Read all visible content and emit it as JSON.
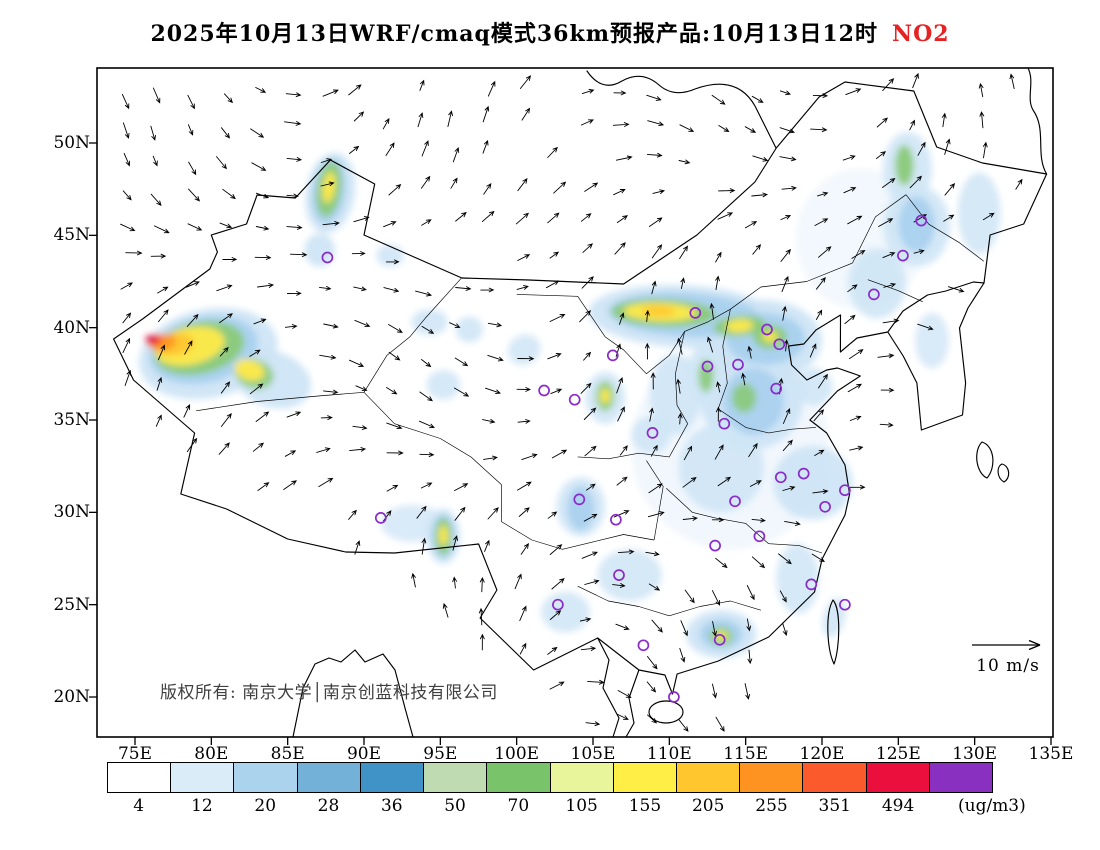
{
  "title": {
    "text": "2025年10月13日WRF/cmaq模式36km预报产品:10月13日12时",
    "pollutant": "NO2",
    "pollutant_color": "#e62222"
  },
  "axes": {
    "lat_labels": [
      "50N",
      "45N",
      "40N",
      "35N",
      "30N",
      "25N",
      "20N"
    ],
    "lon_labels": [
      "75E",
      "80E",
      "85E",
      "90E",
      "95E",
      "100E",
      "105E",
      "110E",
      "115E",
      "120E",
      "125E",
      "130E",
      "135E"
    ]
  },
  "map": {
    "copyright": "版权所有: 南京大学│南京创蓝科技有限公司",
    "wind_legend_label": "10 m/s"
  },
  "colorbar": {
    "unit_label": "(ug/m3)",
    "tick_labels": [
      "4",
      "12",
      "20",
      "28",
      "36",
      "50",
      "70",
      "105",
      "155",
      "205",
      "255",
      "351",
      "494"
    ],
    "colors": [
      "#ffffff",
      "#d9ecf8",
      "#abd3ee",
      "#73b1d9",
      "#3f93c7",
      "#bedbb2",
      "#79c46a",
      "#e9f59a",
      "#ffee45",
      "#ffc62e",
      "#ff9322",
      "#fb5a2d",
      "#ea0f3c",
      "#8a30c0"
    ]
  },
  "chart_data": {
    "type": "heatmap",
    "title": "2025年10月13日WRF/cmaq模式36km预报产品:10月13日12时 NO2",
    "variable": "NO2",
    "unit": "ug/m3",
    "x_axis": {
      "type": "longitude",
      "ticks": [
        "75E",
        "80E",
        "85E",
        "90E",
        "95E",
        "100E",
        "105E",
        "110E",
        "115E",
        "120E",
        "125E",
        "130E",
        "135E"
      ]
    },
    "y_axis": {
      "type": "latitude",
      "ticks": [
        "50N",
        "45N",
        "40N",
        "35N",
        "30N",
        "25N",
        "20N"
      ]
    },
    "lon_range": [
      72.5,
      135.1
    ],
    "lat_range": [
      17.8,
      54.1
    ],
    "contour_levels": [
      4,
      12,
      20,
      28,
      36,
      50,
      70,
      105,
      155,
      205,
      255,
      351,
      494
    ],
    "palette": [
      "#ffffff",
      "#d9ecf8",
      "#abd3ee",
      "#73b1d9",
      "#3f93c7",
      "#bedbb2",
      "#79c46a",
      "#e9f59a",
      "#ffee45",
      "#ffc62e",
      "#ff9322",
      "#fb5a2d",
      "#ea0f3c",
      "#8a30c0"
    ],
    "wind_reference": "10 m/s",
    "station_marker_color": "#8a2bc9",
    "stations_lonlat": [
      [
        87.6,
        43.8
      ],
      [
        91.1,
        29.7
      ],
      [
        101.8,
        36.6
      ],
      [
        103.8,
        36.1
      ],
      [
        106.3,
        38.5
      ],
      [
        111.7,
        40.8
      ],
      [
        108.9,
        34.3
      ],
      [
        112.5,
        37.9
      ],
      [
        114.5,
        38.0
      ],
      [
        116.4,
        39.9
      ],
      [
        117.2,
        39.1
      ],
      [
        117.0,
        36.7
      ],
      [
        113.6,
        34.8
      ],
      [
        114.3,
        30.6
      ],
      [
        117.3,
        31.9
      ],
      [
        118.8,
        32.1
      ],
      [
        121.5,
        31.2
      ],
      [
        120.2,
        30.3
      ],
      [
        115.9,
        28.7
      ],
      [
        113.0,
        28.2
      ],
      [
        104.1,
        30.7
      ],
      [
        106.5,
        29.6
      ],
      [
        106.7,
        26.6
      ],
      [
        102.7,
        25.0
      ],
      [
        108.3,
        22.8
      ],
      [
        113.3,
        23.1
      ],
      [
        110.3,
        20.0
      ],
      [
        119.3,
        26.1
      ],
      [
        121.5,
        25.0
      ],
      [
        123.4,
        41.8
      ],
      [
        125.3,
        43.9
      ],
      [
        126.5,
        45.8
      ]
    ],
    "plumes": [
      {
        "lon": 114,
        "lat": 33.5,
        "rlon": 6.5,
        "rlat": 5.5,
        "rot": 0,
        "color": "#edf5fc",
        "opacity": 0.8
      },
      {
        "lon": 122.5,
        "lat": 44.8,
        "rlon": 4.2,
        "rlat": 3.8,
        "rot": 0,
        "color": "#edf5fc",
        "opacity": 0.7
      },
      {
        "lon": 79.8,
        "lat": 38.6,
        "rlon": 4.6,
        "rlat": 2.4,
        "rot": -12,
        "color": "#cfe5f6",
        "opacity": 0.95
      },
      {
        "lon": 84,
        "lat": 37.2,
        "rlon": 2.6,
        "rlat": 1.5,
        "rot": 18,
        "color": "#cfe5f6",
        "opacity": 0.95
      },
      {
        "lon": 87.8,
        "lat": 47.3,
        "rlon": 1.6,
        "rlat": 2.2,
        "rot": 10,
        "color": "#cfe5f6",
        "opacity": 0.95
      },
      {
        "lon": 87.1,
        "lat": 44.2,
        "rlon": 1.0,
        "rlat": 0.9,
        "rot": 0,
        "color": "#cfe5f6",
        "opacity": 0.95
      },
      {
        "lon": 91.7,
        "lat": 43.9,
        "rlon": 0.9,
        "rlat": 0.6,
        "rot": 0,
        "color": "#cfe5f6",
        "opacity": 0.9
      },
      {
        "lon": 96.9,
        "lat": 39.9,
        "rlon": 0.9,
        "rlat": 0.7,
        "rot": 0,
        "color": "#cfe5f6",
        "opacity": 0.9
      },
      {
        "lon": 94.3,
        "lat": 40.3,
        "rlon": 1.2,
        "rlat": 0.7,
        "rot": 0,
        "color": "#cfe5f6",
        "opacity": 0.9
      },
      {
        "lon": 111,
        "lat": 40.6,
        "rlon": 6.3,
        "rlat": 1.7,
        "rot": 3,
        "color": "#cfe5f6",
        "opacity": 0.95
      },
      {
        "lon": 116.2,
        "lat": 39.3,
        "rlon": 3.8,
        "rlat": 2.2,
        "rot": 0,
        "color": "#cfe5f6",
        "opacity": 0.95
      },
      {
        "lon": 115.4,
        "lat": 36.2,
        "rlon": 3.4,
        "rlat": 2.8,
        "rot": 0,
        "color": "#cfe5f6",
        "opacity": 0.95
      },
      {
        "lon": 119.5,
        "lat": 36.8,
        "rlon": 1.2,
        "rlat": 1.0,
        "rot": 0,
        "color": "#cfe5f6",
        "opacity": 0.9
      },
      {
        "lon": 113.4,
        "lat": 32.4,
        "rlon": 2.8,
        "rlat": 2.4,
        "rot": 0,
        "color": "#cfe5f6",
        "opacity": 0.9
      },
      {
        "lon": 119.4,
        "lat": 31.6,
        "rlon": 2.6,
        "rlat": 2.0,
        "rot": 0,
        "color": "#cfe5f6",
        "opacity": 0.95
      },
      {
        "lon": 105.8,
        "lat": 36.2,
        "rlon": 1.3,
        "rlat": 1.4,
        "rot": 0,
        "color": "#cfe5f6",
        "opacity": 0.9
      },
      {
        "lon": 108.8,
        "lat": 34.2,
        "rlon": 1.3,
        "rlat": 1.0,
        "rot": 0,
        "color": "#cfe5f6",
        "opacity": 0.9
      },
      {
        "lon": 104.2,
        "lat": 30.3,
        "rlon": 1.6,
        "rlat": 1.6,
        "rot": 0,
        "color": "#cfe5f6",
        "opacity": 0.9
      },
      {
        "lon": 95.2,
        "lat": 28.7,
        "rlon": 1.1,
        "rlat": 1.5,
        "rot": 0,
        "color": "#cfe5f6",
        "opacity": 0.9
      },
      {
        "lon": 113.4,
        "lat": 23.4,
        "rlon": 2.3,
        "rlat": 1.3,
        "rot": 0,
        "color": "#cfe5f6",
        "opacity": 0.95
      },
      {
        "lon": 126.2,
        "lat": 45.5,
        "rlon": 2.2,
        "rlat": 2.2,
        "rot": 0,
        "color": "#cfe5f6",
        "opacity": 0.9
      },
      {
        "lon": 123.6,
        "lat": 42.4,
        "rlon": 1.9,
        "rlat": 1.9,
        "rot": 0,
        "color": "#cfe5f6",
        "opacity": 0.9
      },
      {
        "lon": 125.6,
        "lat": 48.6,
        "rlon": 1.6,
        "rlat": 2.0,
        "rot": 0,
        "color": "#cfe5f6",
        "opacity": 0.9
      },
      {
        "lon": 130.3,
        "lat": 46.2,
        "rlon": 1.4,
        "rlat": 2.2,
        "rot": 0,
        "color": "#cfe5f6",
        "opacity": 0.85
      },
      {
        "lon": 110.4,
        "lat": 36.4,
        "rlon": 1.7,
        "rlat": 2.2,
        "rot": 0,
        "color": "#cfe5f6",
        "opacity": 0.9
      },
      {
        "lon": 112.3,
        "lat": 37.6,
        "rlon": 1.0,
        "rlat": 1.6,
        "rot": 0,
        "color": "#cfe5f6",
        "opacity": 0.9
      },
      {
        "lon": 107.4,
        "lat": 26.6,
        "rlon": 2.1,
        "rlat": 1.4,
        "rot": 0,
        "color": "#cfe5f6",
        "opacity": 0.85
      },
      {
        "lon": 118.4,
        "lat": 26.4,
        "rlon": 1.4,
        "rlat": 1.9,
        "rot": 0,
        "color": "#cfe5f6",
        "opacity": 0.85
      },
      {
        "lon": 93.2,
        "lat": 29.4,
        "rlon": 2.1,
        "rlat": 1.0,
        "rot": 0,
        "color": "#cfe5f6",
        "opacity": 0.8
      },
      {
        "lon": 103.2,
        "lat": 24.6,
        "rlon": 1.6,
        "rlat": 1.1,
        "rot": 0,
        "color": "#cfe5f6",
        "opacity": 0.85
      },
      {
        "lon": 120.8,
        "lat": 24.3,
        "rlon": 0.7,
        "rlat": 1.1,
        "rot": 15,
        "color": "#cfe5f6",
        "opacity": 0.9
      },
      {
        "lon": 127.2,
        "lat": 39.3,
        "rlon": 1.1,
        "rlat": 1.5,
        "rot": 0,
        "color": "#cfe5f6",
        "opacity": 0.8
      },
      {
        "lon": 95.2,
        "lat": 36.9,
        "rlon": 1.1,
        "rlat": 0.8,
        "rot": 0,
        "color": "#cfe5f6",
        "opacity": 0.85
      },
      {
        "lon": 100.5,
        "lat": 38.8,
        "rlon": 1.1,
        "rlat": 0.8,
        "rot": -30,
        "color": "#cfe5f6",
        "opacity": 0.85
      },
      {
        "lon": 79.5,
        "lat": 38.8,
        "rlon": 3.6,
        "rlat": 1.8,
        "rot": -12,
        "color": "#a6cfee",
        "opacity": 0.9
      },
      {
        "lon": 111,
        "lat": 40.7,
        "rlon": 5.0,
        "rlat": 1.2,
        "rot": 3,
        "color": "#a6cfee",
        "opacity": 0.9
      },
      {
        "lon": 116.3,
        "lat": 39.4,
        "rlon": 2.6,
        "rlat": 1.4,
        "rot": 0,
        "color": "#a6cfee",
        "opacity": 0.9
      },
      {
        "lon": 87.7,
        "lat": 47.4,
        "rlon": 1.1,
        "rlat": 1.8,
        "rot": 8,
        "color": "#a6cfee",
        "opacity": 0.9
      },
      {
        "lon": 115.5,
        "lat": 36.0,
        "rlon": 2.0,
        "rlat": 1.8,
        "rot": 0,
        "color": "#a6cfee",
        "opacity": 0.85
      },
      {
        "lon": 126.2,
        "lat": 45.6,
        "rlon": 1.2,
        "rlat": 1.5,
        "rot": 0,
        "color": "#a6cfee",
        "opacity": 0.85
      },
      {
        "lon": 104.2,
        "lat": 30.2,
        "rlon": 0.9,
        "rlat": 1.2,
        "rot": 0,
        "color": "#a6cfee",
        "opacity": 0.85
      },
      {
        "lon": 113.4,
        "lat": 23.4,
        "rlon": 1.4,
        "rlat": 0.8,
        "rot": 0,
        "color": "#a6cfee",
        "opacity": 0.9
      },
      {
        "lon": 95.2,
        "lat": 28.7,
        "rlon": 0.8,
        "rlat": 1.2,
        "rot": 0,
        "color": "#a6cfee",
        "opacity": 0.85
      },
      {
        "lon": 79.2,
        "lat": 38.9,
        "rlon": 3.0,
        "rlat": 1.4,
        "rot": -12,
        "color": "#8aca78",
        "opacity": 0.95
      },
      {
        "lon": 82.8,
        "lat": 37.5,
        "rlon": 1.3,
        "rlat": 0.8,
        "rot": 18,
        "color": "#8aca78",
        "opacity": 0.9
      },
      {
        "lon": 87.7,
        "lat": 47.5,
        "rlon": 0.8,
        "rlat": 1.5,
        "rot": 8,
        "color": "#8aca78",
        "opacity": 0.95
      },
      {
        "lon": 109.6,
        "lat": 40.8,
        "rlon": 3.4,
        "rlat": 0.75,
        "rot": 2,
        "color": "#8aca78",
        "opacity": 0.95
      },
      {
        "lon": 114.6,
        "lat": 40.1,
        "rlon": 1.7,
        "rlat": 0.55,
        "rot": -5,
        "color": "#8aca78",
        "opacity": 0.95
      },
      {
        "lon": 116.6,
        "lat": 39.5,
        "rlon": 1.1,
        "rlat": 0.65,
        "rot": 0,
        "color": "#8aca78",
        "opacity": 0.95
      },
      {
        "lon": 105.8,
        "lat": 36.3,
        "rlon": 0.6,
        "rlat": 0.8,
        "rot": 0,
        "color": "#8aca78",
        "opacity": 0.95
      },
      {
        "lon": 95.2,
        "lat": 28.7,
        "rlon": 0.55,
        "rlat": 1.0,
        "rot": 0,
        "color": "#8aca78",
        "opacity": 0.95
      },
      {
        "lon": 113.4,
        "lat": 23.3,
        "rlon": 0.75,
        "rlat": 0.5,
        "rot": 0,
        "color": "#8aca78",
        "opacity": 0.95
      },
      {
        "lon": 125.4,
        "lat": 48.8,
        "rlon": 0.6,
        "rlat": 1.1,
        "rot": 0,
        "color": "#8aca78",
        "opacity": 0.95
      },
      {
        "lon": 112.4,
        "lat": 37.4,
        "rlon": 0.5,
        "rlat": 0.9,
        "rot": 0,
        "color": "#8aca78",
        "opacity": 0.9
      },
      {
        "lon": 114.9,
        "lat": 36.2,
        "rlon": 0.8,
        "rlat": 0.8,
        "rot": 0,
        "color": "#8aca78",
        "opacity": 0.9
      },
      {
        "lon": 78.6,
        "lat": 39.0,
        "rlon": 2.3,
        "rlat": 1.0,
        "rot": -12,
        "color": "#ffe94a",
        "opacity": 0.95
      },
      {
        "lon": 82.5,
        "lat": 37.7,
        "rlon": 1.0,
        "rlat": 0.55,
        "rot": 18,
        "color": "#ffe94a",
        "opacity": 0.95
      },
      {
        "lon": 109.4,
        "lat": 40.85,
        "rlon": 2.4,
        "rlat": 0.5,
        "rot": 2,
        "color": "#ffe94a",
        "opacity": 0.95
      },
      {
        "lon": 114.6,
        "lat": 40.1,
        "rlon": 0.9,
        "rlat": 0.35,
        "rot": -5,
        "color": "#ffe94a",
        "opacity": 0.95
      },
      {
        "lon": 87.7,
        "lat": 47.6,
        "rlon": 0.4,
        "rlat": 0.85,
        "rot": 8,
        "color": "#ffe94a",
        "opacity": 0.95
      },
      {
        "lon": 95.2,
        "lat": 28.75,
        "rlon": 0.3,
        "rlat": 0.55,
        "rot": 0,
        "color": "#ffe94a",
        "opacity": 0.95
      },
      {
        "lon": 105.8,
        "lat": 36.3,
        "rlon": 0.32,
        "rlat": 0.42,
        "rot": 0,
        "color": "#ffe94a",
        "opacity": 0.95
      },
      {
        "lon": 116.6,
        "lat": 39.5,
        "rlon": 0.5,
        "rlat": 0.3,
        "rot": 0,
        "color": "#ffe94a",
        "opacity": 0.9
      },
      {
        "lon": 113.4,
        "lat": 23.3,
        "rlon": 0.4,
        "rlat": 0.27,
        "rot": 0,
        "color": "#ffe94a",
        "opacity": 0.9
      },
      {
        "lon": 77.6,
        "lat": 39.1,
        "rlon": 1.3,
        "rlat": 0.6,
        "rot": -10,
        "color": "#ffc62e",
        "opacity": 0.95
      },
      {
        "lon": 109.3,
        "lat": 40.9,
        "rlon": 1.1,
        "rlat": 0.3,
        "rot": 2,
        "color": "#ffc62e",
        "opacity": 0.9
      },
      {
        "lon": 76.8,
        "lat": 39.2,
        "rlon": 0.9,
        "rlat": 0.45,
        "rot": -10,
        "color": "#ff9322",
        "opacity": 0.95
      },
      {
        "lon": 76.2,
        "lat": 39.35,
        "rlon": 0.55,
        "rlat": 0.3,
        "rot": -10,
        "color": "#f0282f",
        "opacity": 0.95
      },
      {
        "lon": 76.0,
        "lat": 39.4,
        "rlon": 0.32,
        "rlat": 0.18,
        "rot": -10,
        "color": "#d81058",
        "opacity": 1
      }
    ]
  }
}
